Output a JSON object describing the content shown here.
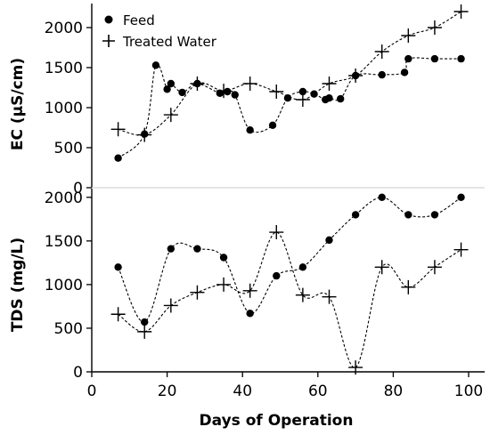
{
  "chart_data": [
    {
      "type": "line",
      "panel": "top",
      "ylabel": "EC (μS/cm)",
      "xlim": [
        0,
        100
      ],
      "ylim": [
        0,
        2300
      ],
      "yticks": [
        0,
        500,
        1000,
        1500,
        2000
      ],
      "legend": {
        "placement": "top-left",
        "entries": [
          "Feed",
          "Treated Water"
        ]
      },
      "series": [
        {
          "name": "Feed",
          "marker": "circle",
          "x": [
            7,
            14,
            17,
            20,
            21,
            24,
            28,
            34,
            36,
            38,
            42,
            48,
            52,
            56,
            59,
            62,
            63,
            66,
            70,
            77,
            83,
            84,
            91,
            98
          ],
          "y": [
            370,
            670,
            1530,
            1230,
            1300,
            1190,
            1300,
            1180,
            1200,
            1160,
            720,
            780,
            1120,
            1200,
            1170,
            1100,
            1120,
            1110,
            1400,
            1410,
            1440,
            1610,
            1610,
            1610
          ]
        },
        {
          "name": "Treated Water",
          "marker": "plus",
          "x": [
            7,
            14,
            21,
            28,
            35,
            42,
            49,
            56,
            63,
            70,
            77,
            84,
            91,
            98
          ],
          "y": [
            730,
            660,
            910,
            1300,
            1210,
            1300,
            1200,
            1100,
            1300,
            1400,
            1700,
            1900,
            2000,
            2200
          ]
        }
      ]
    },
    {
      "type": "line",
      "panel": "bottom",
      "ylabel": "TDS (mg/L)",
      "xlabel": "Days of Operation",
      "xlim": [
        0,
        100
      ],
      "ylim": [
        0,
        2100
      ],
      "yticks": [
        0,
        500,
        1000,
        1500,
        2000
      ],
      "xticks": [
        0,
        20,
        40,
        60,
        80,
        100
      ],
      "series": [
        {
          "name": "Feed",
          "marker": "circle",
          "x": [
            7,
            14,
            21,
            28,
            35,
            42,
            49,
            56,
            63,
            70,
            77,
            84,
            91,
            98
          ],
          "y": [
            1200,
            570,
            1410,
            1410,
            1310,
            670,
            1100,
            1200,
            1510,
            1800,
            2000,
            1800,
            1800,
            2000
          ]
        },
        {
          "name": "Treated Water",
          "marker": "plus",
          "x": [
            7,
            14,
            21,
            28,
            35,
            42,
            49,
            56,
            63,
            70,
            77,
            84,
            91,
            98
          ],
          "y": [
            660,
            460,
            760,
            910,
            1000,
            930,
            1600,
            880,
            860,
            50,
            1200,
            970,
            1200,
            1400
          ]
        }
      ]
    }
  ]
}
